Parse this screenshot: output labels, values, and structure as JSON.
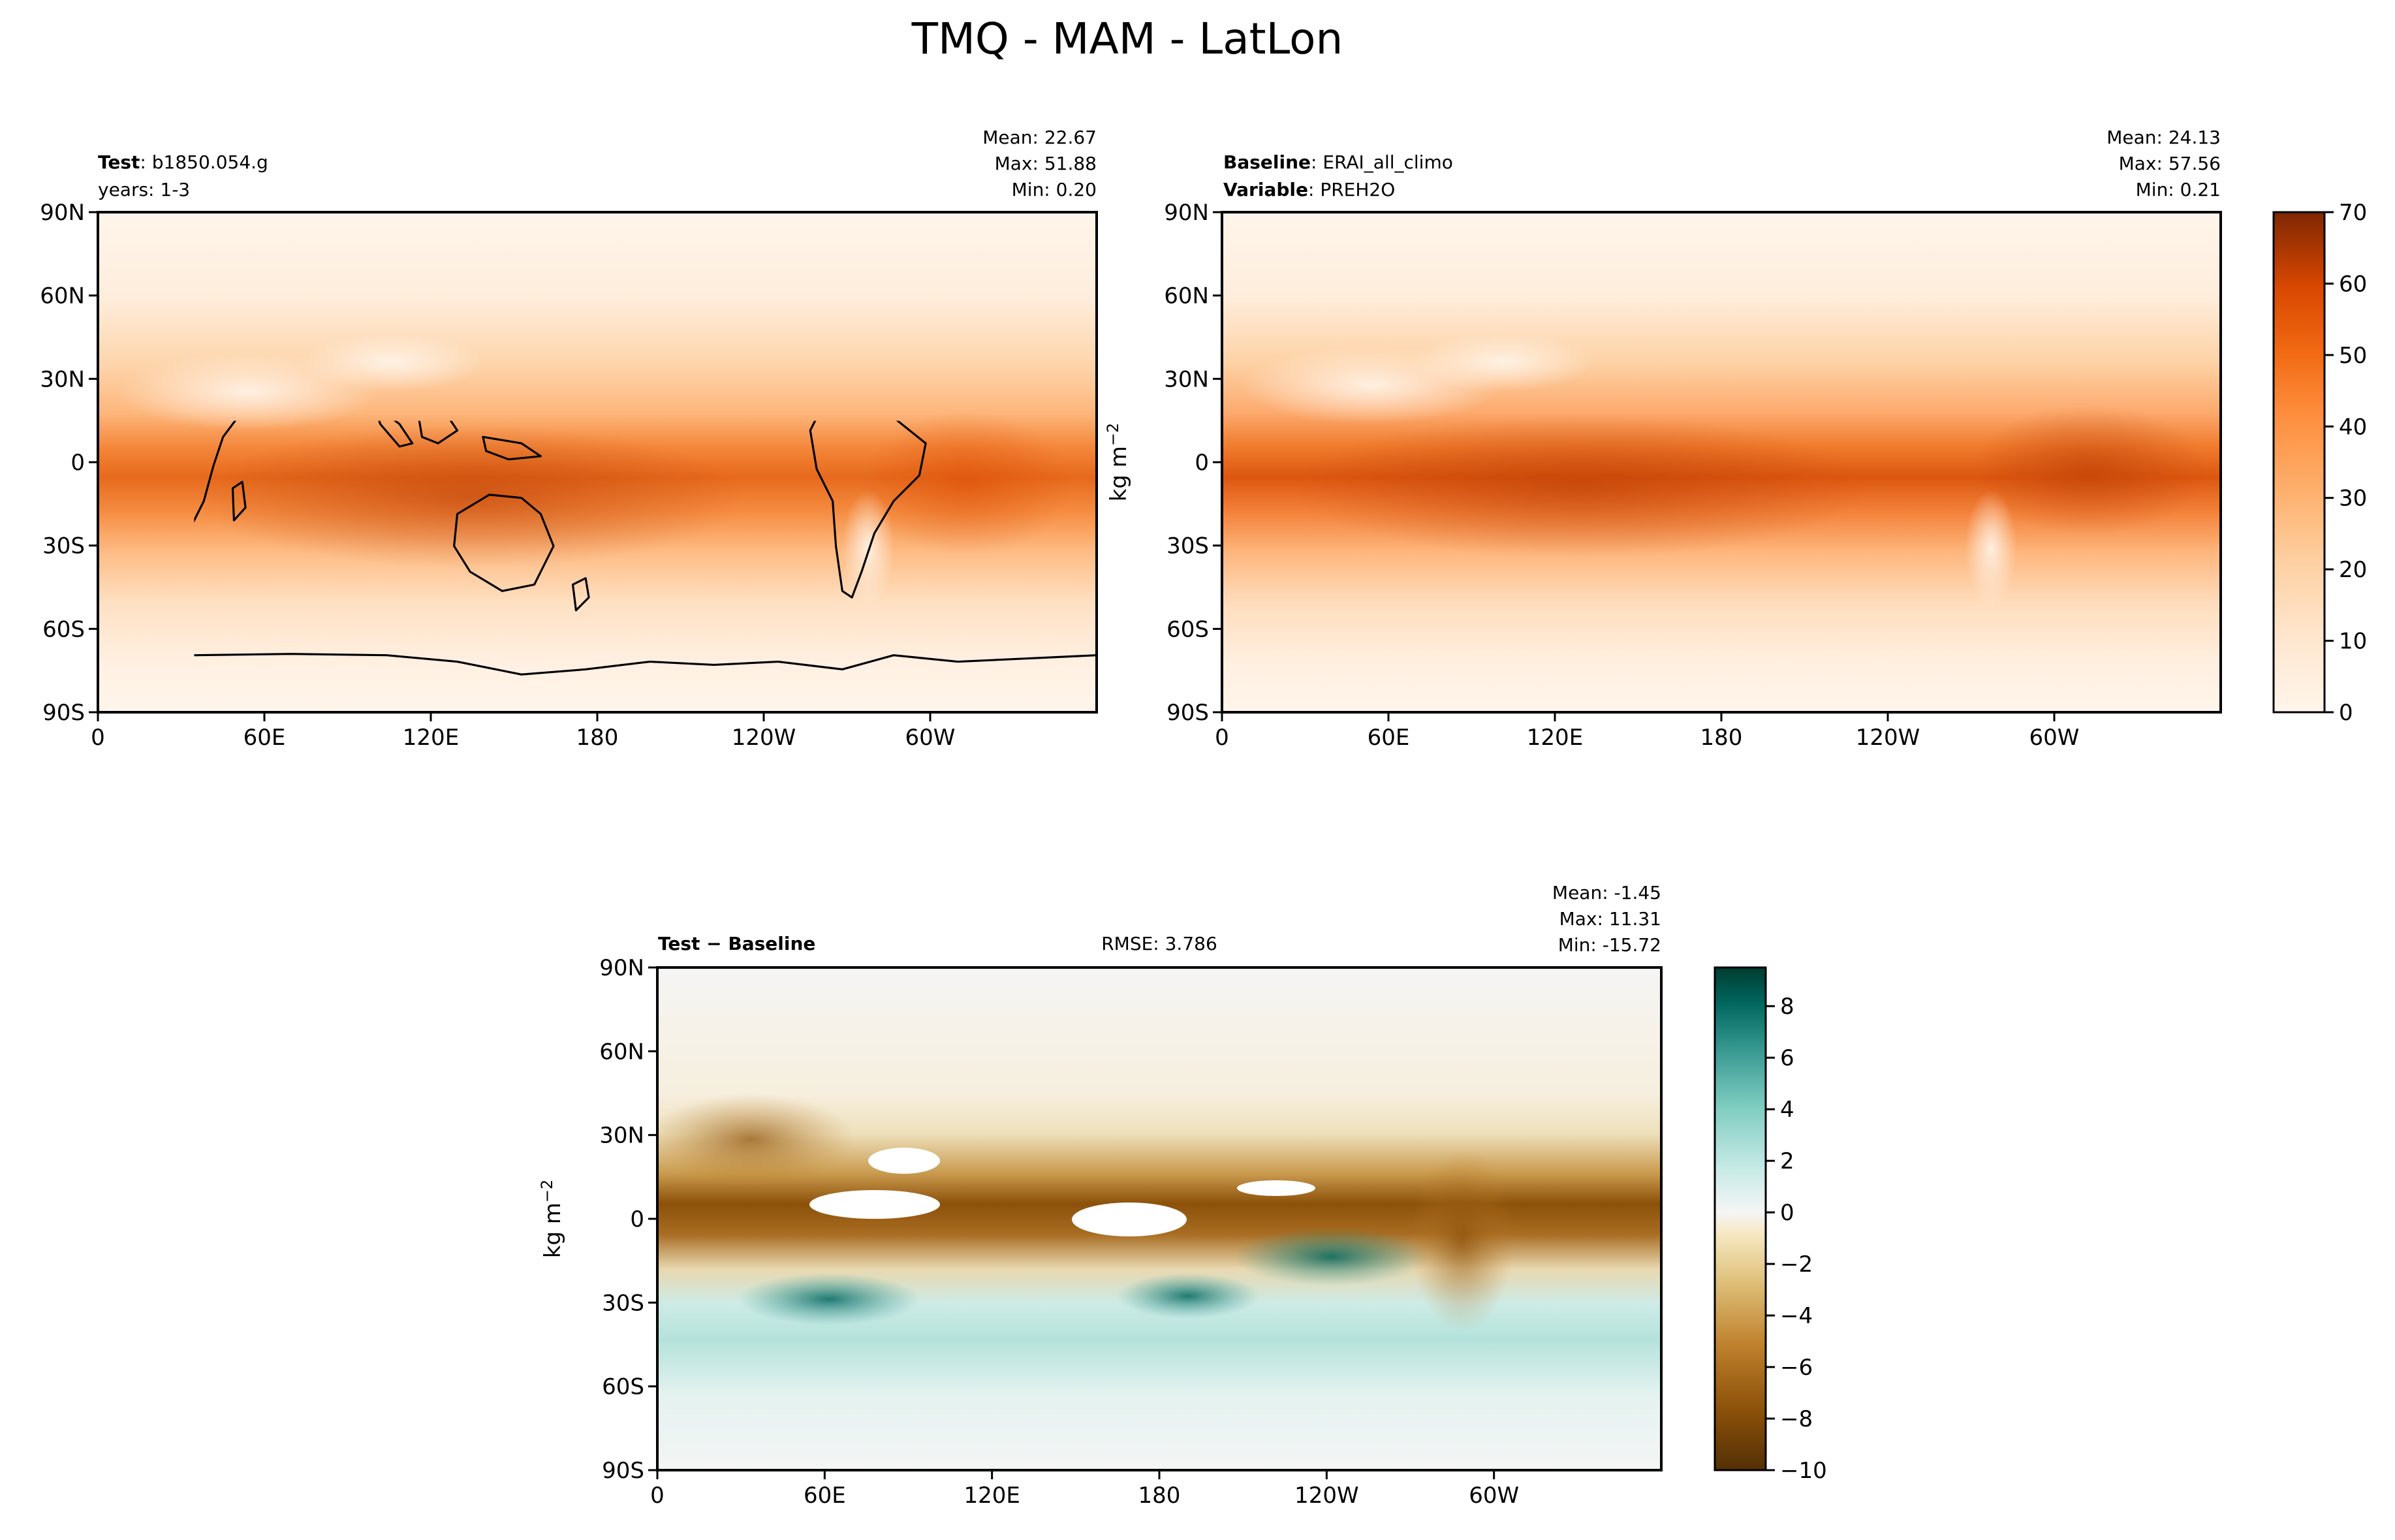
{
  "figure": {
    "title": "TMQ - MAM - LatLon"
  },
  "chart_data": [
    {
      "type": "heatmap",
      "panel": "test",
      "label_bold": "Test",
      "label_value": "b1850.054.g",
      "label_line2": "years: 1-3",
      "stats": [
        "Mean: 22.67",
        "Max: 51.88",
        "Min:  0.20"
      ],
      "x_ticks": [
        "0",
        "60E",
        "120E",
        "180",
        "120W",
        "60W"
      ],
      "y_ticks": [
        "90N",
        "60N",
        "30N",
        "0",
        "30S",
        "60S",
        "90S"
      ],
      "value_range": [
        0,
        70
      ],
      "colormap": "Oranges"
    },
    {
      "type": "heatmap",
      "panel": "baseline",
      "label_bold": "Baseline",
      "label_value": "ERAI_all_climo",
      "label2_bold": "Variable",
      "label2_value": "PREH2O",
      "stats": [
        "Mean: 24.13",
        "Max: 57.56",
        "Min:  0.21"
      ],
      "x_ticks": [
        "0",
        "60E",
        "120E",
        "180",
        "120W",
        "60W"
      ],
      "y_ticks": [
        "90N",
        "60N",
        "30N",
        "0",
        "30S",
        "60S",
        "90S"
      ],
      "value_range": [
        0,
        70
      ],
      "colormap": "Oranges",
      "colorbar": {
        "ticks": [
          "0",
          "10",
          "20",
          "30",
          "40",
          "50",
          "60",
          "70"
        ],
        "label": "kg m",
        "label_sup": "−2"
      }
    },
    {
      "type": "heatmap",
      "panel": "difference",
      "label_bold": "Test − Baseline",
      "rmse": "RMSE: 3.786",
      "stats": [
        "Mean: -1.45",
        "Max: 11.31",
        "Min: -15.72"
      ],
      "x_ticks": [
        "0",
        "60E",
        "120E",
        "180",
        "120W",
        "60W"
      ],
      "y_ticks": [
        "90N",
        "60N",
        "30N",
        "0",
        "30S",
        "60S",
        "90S"
      ],
      "value_range": [
        -10,
        9.5
      ],
      "colormap": "BrBG",
      "colorbar": {
        "ticks": [
          "8",
          "6",
          "4",
          "2",
          "0",
          "−2",
          "−4",
          "−6",
          "−8",
          "−10"
        ],
        "label": "kg m",
        "label_sup": "−2"
      }
    }
  ],
  "colors": {
    "orange_low": "#fff5eb",
    "orange_mid": "#fdae6b",
    "orange_high": "#7f2704",
    "brbg_low": "#543005",
    "brbg_mid": "#f5f5f5",
    "brbg_high": "#003c30"
  }
}
